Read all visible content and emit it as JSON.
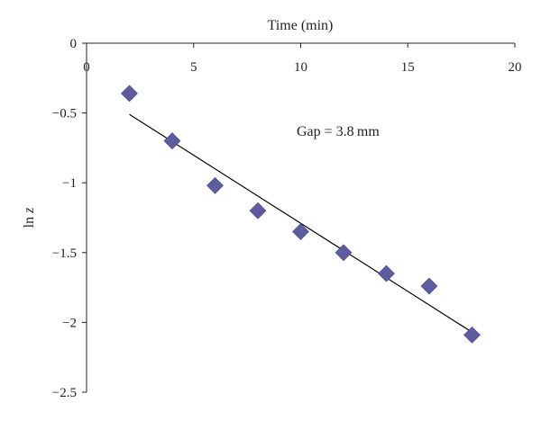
{
  "chart_data": {
    "type": "scatter",
    "xlabel": "Time (min)",
    "ylabel_main": "ln ",
    "ylabel_italic": "z",
    "xlim": [
      0,
      20
    ],
    "ylim": [
      -2.5,
      0
    ],
    "x_ticks": [
      0,
      5,
      10,
      15,
      20
    ],
    "y_ticks": [
      0,
      -0.5,
      -1,
      -1.5,
      -2,
      -2.5
    ],
    "x_tick_labels": [
      "0",
      "5",
      "10",
      "15",
      "20"
    ],
    "y_tick_labels": [
      "0",
      "−0.5",
      "−1",
      "−1.5",
      "−2",
      "−2.5"
    ],
    "x_axis_position": "top",
    "grid": false,
    "annotation": "Gap = 3.8 mm",
    "series": [
      {
        "marker": "diamond",
        "color": "#5f5ba0",
        "points": [
          {
            "x": 2,
            "y": -0.36
          },
          {
            "x": 4,
            "y": -0.7
          },
          {
            "x": 6,
            "y": -1.02
          },
          {
            "x": 8,
            "y": -1.2
          },
          {
            "x": 10,
            "y": -1.35
          },
          {
            "x": 12,
            "y": -1.5
          },
          {
            "x": 14,
            "y": -1.65
          },
          {
            "x": 16,
            "y": -1.74
          },
          {
            "x": 18,
            "y": -2.09
          }
        ]
      }
    ],
    "trendline": {
      "type": "linear",
      "color": "#000000",
      "from": {
        "x": 2,
        "y": -0.51
      },
      "to": {
        "x": 18,
        "y": -2.07
      }
    }
  }
}
